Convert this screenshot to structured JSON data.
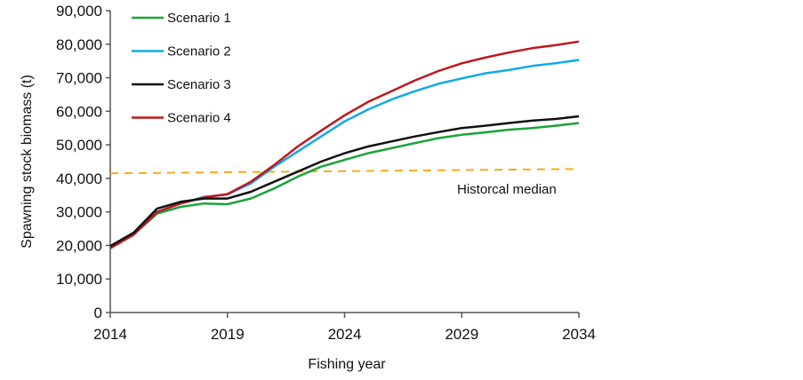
{
  "chart_data": {
    "type": "line",
    "title": "",
    "xlabel": "Fishing year",
    "ylabel": "Spawning stock biomass (t)",
    "xlim": [
      2014,
      2034
    ],
    "ylim": [
      0,
      90000
    ],
    "grid": false,
    "legend_position": "top-left",
    "x": [
      2014,
      2015,
      2016,
      2017,
      2018,
      2019,
      2020,
      2021,
      2022,
      2023,
      2024,
      2025,
      2026,
      2027,
      2028,
      2029,
      2030,
      2031,
      2032,
      2033,
      2034
    ],
    "x_ticks": [
      "2014",
      "2019",
      "2024",
      "2029",
      "2034"
    ],
    "x_tick_values": [
      2014,
      2019,
      2024,
      2029,
      2034
    ],
    "y_ticks": [
      "0",
      "10,000",
      "20,000",
      "30,000",
      "40,000",
      "50,000",
      "60,000",
      "70,000",
      "80,000",
      "90,000"
    ],
    "y_tick_values": [
      0,
      10000,
      20000,
      30000,
      40000,
      50000,
      60000,
      70000,
      80000,
      90000
    ],
    "series": [
      {
        "name": "Scenario 1",
        "color": "#1aa33a",
        "values": [
          19500,
          23300,
          29500,
          31500,
          32500,
          32300,
          34000,
          37000,
          40500,
          43500,
          45500,
          47500,
          49000,
          50500,
          52000,
          53000,
          53700,
          54500,
          55000,
          55700,
          56500
        ]
      },
      {
        "name": "Scenario 2",
        "color": "#12a9e8",
        "values": [
          19500,
          23500,
          30000,
          32500,
          34500,
          35200,
          38500,
          43500,
          48000,
          52500,
          57000,
          60500,
          63500,
          66000,
          68200,
          69800,
          71300,
          72300,
          73500,
          74300,
          75300
        ]
      },
      {
        "name": "Scenario 3",
        "color": "#111111",
        "values": [
          19800,
          23800,
          31000,
          33000,
          34000,
          34000,
          36000,
          39000,
          42000,
          45000,
          47500,
          49500,
          51000,
          52500,
          53800,
          55000,
          55700,
          56500,
          57200,
          57700,
          58500
        ]
      },
      {
        "name": "Scenario 4",
        "color": "#c0161b",
        "values": [
          19200,
          23200,
          30000,
          32500,
          34300,
          35300,
          39000,
          44000,
          49500,
          54200,
          58800,
          62800,
          66000,
          69200,
          72000,
          74300,
          76000,
          77500,
          78800,
          79700,
          80800
        ]
      }
    ],
    "reference_line": {
      "name": "Historcal median",
      "color": "#f5ab1c",
      "style": "dashed",
      "from": [
        2014,
        41500
      ],
      "to": [
        2034,
        42800
      ]
    },
    "annotations": [
      {
        "text": "Historcal median",
        "near": "right, below reference line"
      }
    ]
  }
}
